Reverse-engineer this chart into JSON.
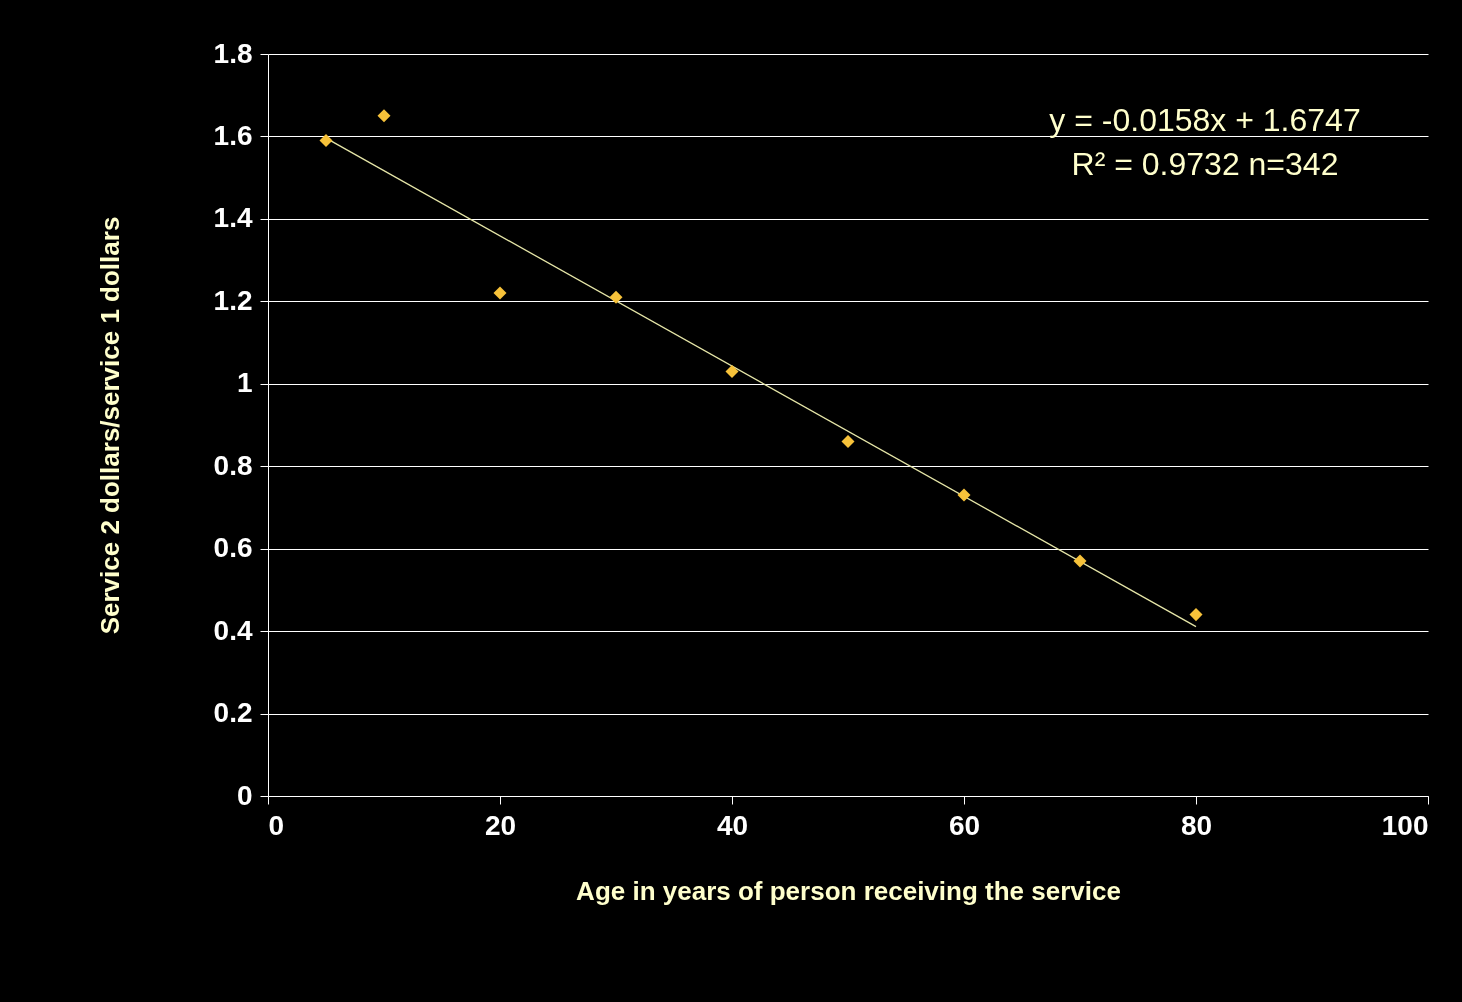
{
  "chart_data": {
    "type": "scatter",
    "xlabel": "Age in years of person receiving the service",
    "ylabel": "Service 2 dollars/service 1 dollars",
    "xlim": [
      0,
      100
    ],
    "ylim": [
      0,
      1.8
    ],
    "xticks": [
      0,
      20,
      40,
      60,
      80,
      100
    ],
    "yticks": [
      {
        "value": 0,
        "label": "0"
      },
      0.2,
      0.4,
      0.6,
      0.8,
      {
        "value": 1,
        "label": "1"
      },
      1.2,
      1.4,
      1.6,
      1.8
    ],
    "grid": "y",
    "x": [
      5,
      10,
      20,
      30,
      40,
      50,
      60,
      70,
      80
    ],
    "series": [
      {
        "marker": "diamond",
        "color": "#f7c23a",
        "values": [
          1.59,
          1.65,
          1.22,
          1.21,
          1.03,
          0.86,
          0.73,
          0.57,
          0.44
        ]
      },
      {
        "type": "line",
        "color": "#e6e6a8",
        "x": [
          5,
          80
        ],
        "values": [
          1.596,
          0.411
        ]
      }
    ],
    "annotations": [
      "y = -0.0158x + 1.6747",
      "R² = 0.9732    n=342"
    ]
  }
}
